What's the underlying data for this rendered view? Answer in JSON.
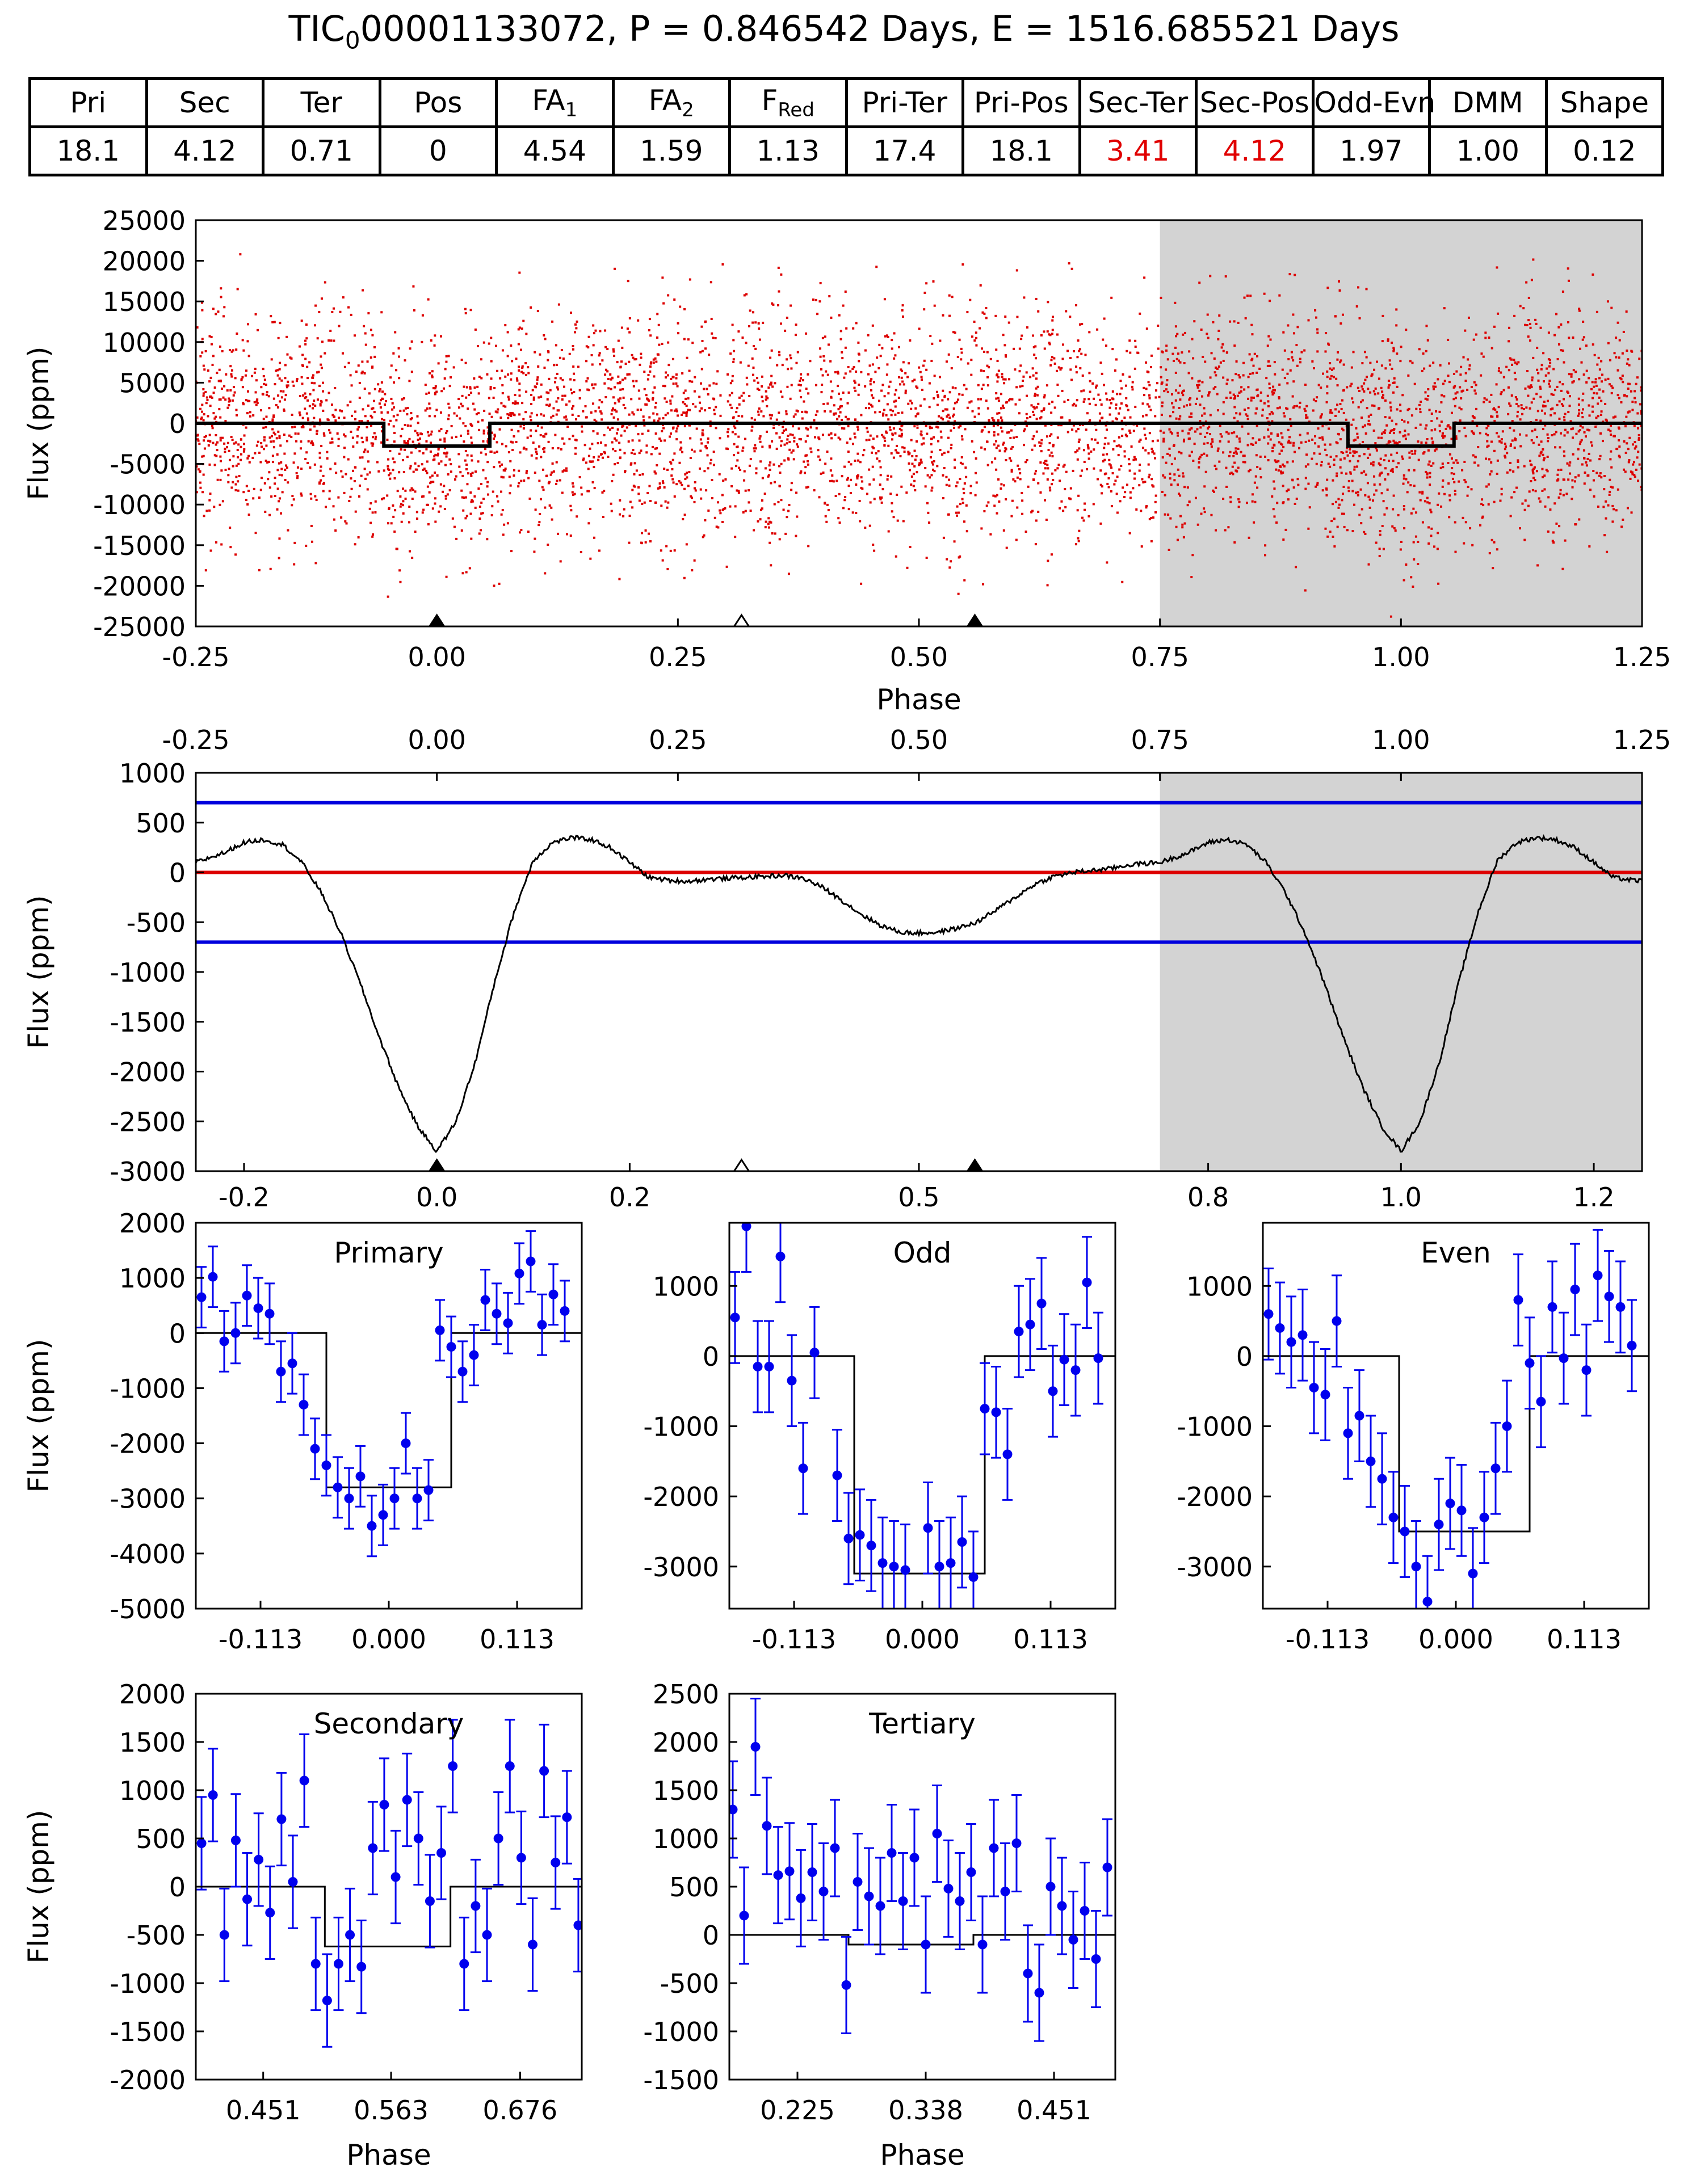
{
  "title": {
    "prefix": "TIC",
    "sub": "0",
    "rest": "00001133072, P = 0.846542 Days, E = 1516.685521 Days"
  },
  "stats": {
    "headers": [
      {
        "label": "Pri"
      },
      {
        "label": "Sec"
      },
      {
        "label": "Ter"
      },
      {
        "label": "Pos"
      },
      {
        "label": "FA",
        "sub": "1"
      },
      {
        "label": "FA",
        "sub": "2"
      },
      {
        "label": "F",
        "sub": "Red"
      },
      {
        "label": "Pri-Ter"
      },
      {
        "label": "Pri-Pos"
      },
      {
        "label": "Sec-Ter"
      },
      {
        "label": "Sec-Pos"
      },
      {
        "label": "Odd-Evn"
      },
      {
        "label": "DMM"
      },
      {
        "label": "Shape"
      }
    ],
    "values": [
      "18.1",
      "4.12",
      "0.71",
      "0",
      "4.54",
      "1.59",
      "1.13",
      "17.4",
      "18.1",
      "3.41",
      "4.12",
      "1.97",
      "1.00",
      "0.12"
    ],
    "red_columns": [
      9,
      10
    ],
    "highlight_color": "#e00000"
  },
  "colors": {
    "points": "#dd0000",
    "model": "#000000",
    "shade": "#d3d3d3",
    "blue": "#0000dd",
    "red_line": "#dd0000",
    "binned": "#0000ee"
  },
  "chart_data": [
    {
      "id": "phased-raw",
      "type": "scatter",
      "title": "",
      "xlabel": "Phase",
      "ylabel": "Flux (ppm)",
      "xlim": [
        -0.25,
        1.25
      ],
      "ylim": [
        -25000,
        25000
      ],
      "xticks": [
        -0.25,
        0,
        0.25,
        0.5,
        0.75,
        1.0,
        1.25
      ],
      "xtick_labels": [
        "-0.25",
        "0.00",
        "0.25",
        "0.50",
        "0.75",
        "1.00",
        "1.25"
      ],
      "yticks": [
        -25000,
        -20000,
        -15000,
        -10000,
        -5000,
        0,
        5000,
        10000,
        15000,
        20000,
        25000
      ],
      "ytick_labels": [
        "-25000",
        "-20000",
        "-15000",
        "-10000",
        "-5000",
        "0",
        "5000",
        "10000",
        "15000",
        "20000",
        "25000"
      ],
      "shaded_from": 0.75,
      "scatter": {
        "n_points": 5200,
        "sigma_ppm": 7000,
        "clip": 21000
      },
      "model": {
        "transit_width": 0.11,
        "centers": [
          0,
          1
        ],
        "depth": -2800
      },
      "markers": [
        {
          "x": 0,
          "filled": true
        },
        {
          "x": 0.316,
          "filled": false
        },
        {
          "x": 0.558,
          "filled": true
        }
      ]
    },
    {
      "id": "binned-smooth",
      "type": "line",
      "title": "",
      "xlabel": "",
      "ylabel": "Flux (ppm)",
      "xlim": [
        -0.25,
        1.25
      ],
      "ylim": [
        -3000,
        1000
      ],
      "top_xticks": [
        -0.25,
        0,
        0.25,
        0.5,
        0.75,
        1.0,
        1.25
      ],
      "top_xtick_labels": [
        "-0.25",
        "0.00",
        "0.25",
        "0.50",
        "0.75",
        "1.00",
        "1.25"
      ],
      "bottom_xticks": [
        -0.2,
        0,
        0.2,
        0.5,
        0.8,
        1.0,
        1.2
      ],
      "bottom_xtick_labels": [
        "-0.2",
        "0.0",
        "0.2",
        "0.5",
        "0.8",
        "1.0",
        "1.2"
      ],
      "yticks": [
        -3000,
        -2500,
        -2000,
        -1500,
        -1000,
        -500,
        0,
        500,
        1000
      ],
      "ytick_labels": [
        "-3000",
        "-2500",
        "-2000",
        "-1500",
        "-1000",
        "-500",
        "0",
        "500",
        "1000"
      ],
      "shaded_from": 0.75,
      "hlines": [
        {
          "y": 700,
          "color": "blue"
        },
        {
          "y": 0,
          "color": "red"
        },
        {
          "y": -700,
          "color": "blue"
        }
      ],
      "series_anchors": {
        "x": [
          -0.25,
          -0.22,
          -0.2,
          -0.18,
          -0.16,
          -0.14,
          -0.12,
          -0.1,
          -0.08,
          -0.06,
          -0.04,
          -0.02,
          0,
          0.02,
          0.04,
          0.06,
          0.08,
          0.1,
          0.12,
          0.14,
          0.16,
          0.18,
          0.2,
          0.22,
          0.24,
          0.26,
          0.28,
          0.3,
          0.32,
          0.34,
          0.36,
          0.38,
          0.4,
          0.42,
          0.44,
          0.46,
          0.48,
          0.5,
          0.52,
          0.54,
          0.56,
          0.58,
          0.6,
          0.62,
          0.64,
          0.66,
          0.68,
          0.7,
          0.72,
          0.75
        ],
        "y": [
          100,
          200,
          300,
          330,
          280,
          100,
          -200,
          -600,
          -1100,
          -1650,
          -2150,
          -2550,
          -2800,
          -2500,
          -1900,
          -1100,
          -400,
          120,
          300,
          350,
          330,
          250,
          100,
          -50,
          -80,
          -90,
          -70,
          -60,
          -50,
          -40,
          -30,
          -60,
          -150,
          -280,
          -420,
          -530,
          -600,
          -610,
          -600,
          -560,
          -500,
          -380,
          -250,
          -120,
          -40,
          0,
          20,
          40,
          80,
          100
        ]
      },
      "markers": [
        {
          "x": 0,
          "filled": true
        },
        {
          "x": 0.316,
          "filled": false
        },
        {
          "x": 0.558,
          "filled": true
        }
      ]
    },
    {
      "id": "primary",
      "type": "scatter",
      "title": "Primary",
      "xlabel": "",
      "ylabel": "Flux (ppm)",
      "xlim": [
        -0.17,
        0.17
      ],
      "ylim": [
        -5000,
        2000
      ],
      "xticks": [
        -0.113,
        0,
        0.113
      ],
      "xtick_labels": [
        "-0.113",
        "0.000",
        "0.113"
      ],
      "yticks": [
        -5000,
        -4000,
        -3000,
        -2000,
        -1000,
        0,
        1000,
        2000
      ],
      "ytick_labels": [
        "-5000",
        "-4000",
        "-3000",
        "-2000",
        "-1000",
        "0",
        "1000",
        "2000"
      ],
      "model": {
        "x0": -0.055,
        "x1": 0.055,
        "depth": -2800
      },
      "errbar": 550,
      "x": [
        -0.165,
        -0.155,
        -0.145,
        -0.135,
        -0.125,
        -0.115,
        -0.105,
        -0.095,
        -0.085,
        -0.075,
        -0.065,
        -0.055,
        -0.045,
        -0.035,
        -0.025,
        -0.015,
        -0.005,
        0.005,
        0.015,
        0.025,
        0.035,
        0.045,
        0.055,
        0.065,
        0.075,
        0.085,
        0.095,
        0.105,
        0.115,
        0.125,
        0.135,
        0.145,
        0.155
      ],
      "y": [
        650,
        1020,
        -150,
        0,
        680,
        450,
        350,
        -700,
        -550,
        -1300,
        -2100,
        -2400,
        -2800,
        -3000,
        -2600,
        -3500,
        -3300,
        -3000,
        -2000,
        -3000,
        -2850,
        50,
        -250,
        -700,
        -400,
        600,
        350,
        180,
        1080,
        1300,
        150,
        700,
        400
      ]
    },
    {
      "id": "odd",
      "type": "scatter",
      "title": "Odd",
      "xlabel": "",
      "ylabel": "",
      "xlim": [
        -0.17,
        0.17
      ],
      "ylim": [
        -3600,
        1900
      ],
      "xticks": [
        -0.113,
        0,
        0.113
      ],
      "xtick_labels": [
        "-0.113",
        "0.000",
        "0.113"
      ],
      "yticks": [
        -3000,
        -2000,
        -1000,
        0,
        1000
      ],
      "ytick_labels": [
        "-3000",
        "-2000",
        "-1000",
        "0",
        "1000"
      ],
      "model": {
        "x0": -0.06,
        "x1": 0.055,
        "depth": -3100
      },
      "errbar": 650,
      "x": [
        -0.165,
        -0.155,
        -0.145,
        -0.135,
        -0.125,
        -0.115,
        -0.105,
        -0.095,
        -0.075,
        -0.065,
        -0.055,
        -0.045,
        -0.035,
        -0.025,
        -0.015,
        0.005,
        0.015,
        0.025,
        0.035,
        0.045,
        0.055,
        0.065,
        0.075,
        0.085,
        0.095,
        0.105,
        0.115,
        0.125,
        0.135,
        0.145,
        0.155
      ],
      "y": [
        550,
        1850,
        -150,
        -150,
        1420,
        -350,
        -1600,
        50,
        -1700,
        -2600,
        -2550,
        -2700,
        -2950,
        -3000,
        -3050,
        -2450,
        -3000,
        -2950,
        -2650,
        -3150,
        -750,
        -800,
        -1400,
        350,
        450,
        750,
        -500,
        -50,
        -200,
        1050,
        -30
      ]
    },
    {
      "id": "even",
      "type": "scatter",
      "title": "Even",
      "xlabel": "",
      "ylabel": "",
      "xlim": [
        -0.17,
        0.17
      ],
      "ylim": [
        -3600,
        1900
      ],
      "xticks": [
        -0.113,
        0,
        0.113
      ],
      "xtick_labels": [
        "-0.113",
        "0.000",
        "0.113"
      ],
      "yticks": [
        -3000,
        -2000,
        -1000,
        0,
        1000
      ],
      "ytick_labels": [
        "-3000",
        "-2000",
        "-1000",
        "0",
        "1000"
      ],
      "model": {
        "x0": -0.05,
        "x1": 0.065,
        "depth": -2500
      },
      "errbar": 650,
      "x": [
        -0.165,
        -0.155,
        -0.145,
        -0.135,
        -0.125,
        -0.115,
        -0.105,
        -0.095,
        -0.085,
        -0.075,
        -0.065,
        -0.055,
        -0.045,
        -0.035,
        -0.025,
        -0.015,
        -0.005,
        0.005,
        0.015,
        0.025,
        0.035,
        0.045,
        0.055,
        0.065,
        0.075,
        0.085,
        0.095,
        0.105,
        0.115,
        0.125,
        0.135,
        0.145,
        0.155
      ],
      "y": [
        600,
        400,
        200,
        300,
        -450,
        -550,
        500,
        -1100,
        -850,
        -1500,
        -1750,
        -2300,
        -2500,
        -3000,
        -3500,
        -2400,
        -2100,
        -2200,
        -3100,
        -2300,
        -1600,
        -1000,
        800,
        -100,
        -650,
        700,
        -30,
        950,
        -200,
        1150,
        850,
        700,
        150
      ]
    },
    {
      "id": "secondary",
      "type": "scatter",
      "title": "Secondary",
      "xlabel": "Phase",
      "ylabel": "Flux (ppm)",
      "xlim": [
        0.392,
        0.73
      ],
      "ylim": [
        -2000,
        2000
      ],
      "xticks": [
        0.451,
        0.563,
        0.676
      ],
      "xtick_labels": [
        "0.451",
        "0.563",
        "0.676"
      ],
      "yticks": [
        -2000,
        -1500,
        -1000,
        -500,
        0,
        500,
        1000,
        1500,
        2000
      ],
      "ytick_labels": [
        "-2000",
        "-1500",
        "-1000",
        "-500",
        "0",
        "500",
        "1000",
        "1500",
        "2000"
      ],
      "model": {
        "x0": 0.505,
        "x1": 0.615,
        "depth": -620
      },
      "errbar": 480,
      "x": [
        0.397,
        0.407,
        0.417,
        0.427,
        0.437,
        0.447,
        0.457,
        0.467,
        0.477,
        0.487,
        0.497,
        0.507,
        0.517,
        0.527,
        0.537,
        0.547,
        0.557,
        0.567,
        0.577,
        0.587,
        0.597,
        0.607,
        0.617,
        0.627,
        0.637,
        0.647,
        0.657,
        0.667,
        0.677,
        0.687,
        0.697,
        0.707,
        0.717,
        0.727
      ],
      "y": [
        450,
        950,
        -500,
        480,
        -130,
        280,
        -270,
        700,
        50,
        1100,
        -800,
        -1180,
        -800,
        -500,
        -830,
        400,
        850,
        100,
        900,
        500,
        -150,
        350,
        1250,
        -800,
        -200,
        -500,
        500,
        1250,
        300,
        -600,
        1200,
        250,
        720,
        -400
      ]
    },
    {
      "id": "tertiary",
      "type": "scatter",
      "title": "Tertiary",
      "xlabel": "Phase",
      "ylabel": "",
      "xlim": [
        0.165,
        0.505
      ],
      "ylim": [
        -1500,
        2500
      ],
      "xticks": [
        0.225,
        0.338,
        0.451
      ],
      "xtick_labels": [
        "0.225",
        "0.338",
        "0.451"
      ],
      "yticks": [
        -1500,
        -1000,
        -500,
        0,
        500,
        1000,
        1500,
        2000,
        2500
      ],
      "ytick_labels": [
        "-1500",
        "-1000",
        "-500",
        "0",
        "500",
        "1000",
        "1500",
        "2000",
        "2500"
      ],
      "model": {
        "x0": 0.27,
        "x1": 0.38,
        "depth": -100
      },
      "errbar": 500,
      "x": [
        0.168,
        0.178,
        0.188,
        0.198,
        0.208,
        0.218,
        0.228,
        0.238,
        0.248,
        0.258,
        0.268,
        0.278,
        0.288,
        0.298,
        0.308,
        0.318,
        0.328,
        0.338,
        0.348,
        0.358,
        0.368,
        0.378,
        0.388,
        0.398,
        0.408,
        0.418,
        0.428,
        0.438,
        0.448,
        0.458,
        0.468,
        0.478,
        0.488,
        0.498
      ],
      "y": [
        1300,
        200,
        1950,
        1130,
        620,
        660,
        380,
        650,
        450,
        900,
        -520,
        550,
        400,
        300,
        850,
        350,
        800,
        -100,
        1050,
        480,
        350,
        650,
        -100,
        900,
        450,
        950,
        -400,
        -600,
        500,
        300,
        -50,
        250,
        -250,
        700
      ]
    }
  ]
}
